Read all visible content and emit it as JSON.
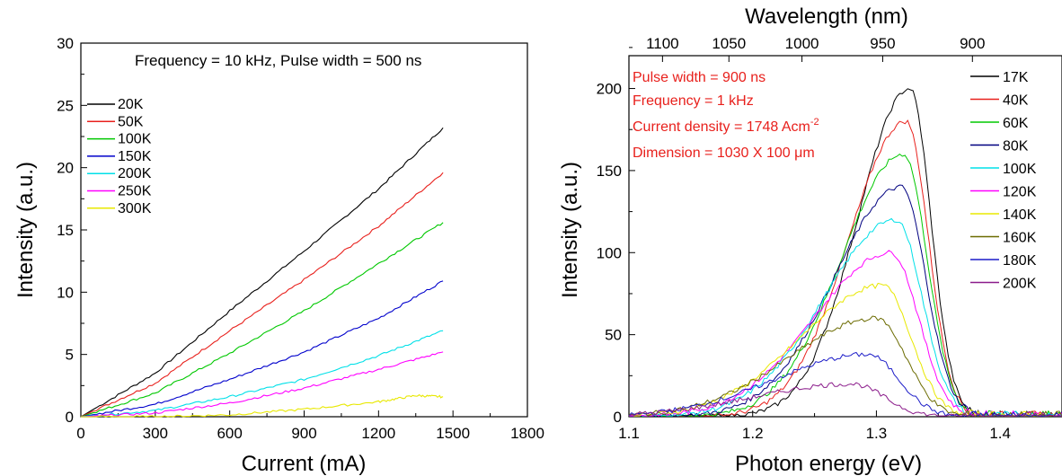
{
  "chart_data": [
    {
      "type": "line",
      "xlabel": "Current (mA)",
      "ylabel": "Intensity (a.u.)",
      "xlim": [
        0,
        1800
      ],
      "ylim": [
        0,
        30
      ],
      "xticks": [
        0,
        300,
        600,
        900,
        1200,
        1500,
        1800
      ],
      "yticks": [
        0,
        5,
        10,
        15,
        20,
        25,
        30
      ],
      "annotation": "Frequency = 10 kHz, Pulse width = 500 ns",
      "legend_position": "top-left",
      "grid": false,
      "series": [
        {
          "name": "20K",
          "color": "#000000",
          "x": [
            0,
            300,
            600,
            900,
            1200,
            1460
          ],
          "y": [
            0,
            3.5,
            8.5,
            13.3,
            18.3,
            23.2
          ]
        },
        {
          "name": "50K",
          "color": "#e8201c",
          "x": [
            0,
            300,
            600,
            900,
            1200,
            1460
          ],
          "y": [
            0,
            2.7,
            6.9,
            11.0,
            15.3,
            19.6
          ]
        },
        {
          "name": "100K",
          "color": "#00c800",
          "x": [
            0,
            300,
            600,
            900,
            1200,
            1460
          ],
          "y": [
            0,
            1.9,
            5.1,
            8.5,
            12.3,
            15.6
          ]
        },
        {
          "name": "150K",
          "color": "#0000cc",
          "x": [
            0,
            300,
            600,
            900,
            1200,
            1460
          ],
          "y": [
            0,
            1.0,
            3.0,
            5.2,
            7.9,
            10.9
          ]
        },
        {
          "name": "200K",
          "color": "#00e0e8",
          "x": [
            0,
            300,
            600,
            900,
            1200,
            1460
          ],
          "y": [
            0,
            0.5,
            1.6,
            3.0,
            4.9,
            6.9
          ]
        },
        {
          "name": "250K",
          "color": "#ff00ff",
          "x": [
            0,
            300,
            600,
            900,
            1200,
            1460
          ],
          "y": [
            0,
            0.3,
            1.1,
            2.3,
            3.8,
            5.2
          ]
        },
        {
          "name": "300K",
          "color": "#e8e800",
          "x": [
            0,
            300,
            600,
            900,
            1200,
            1350,
            1460
          ],
          "y": [
            0,
            0,
            0.15,
            0.6,
            1.2,
            1.7,
            1.6
          ]
        }
      ]
    },
    {
      "type": "line",
      "xlabel": "Photon energy (eV)",
      "ylabel": "Intensity (a.u.)",
      "x2label": "Wavelength (nm)",
      "xlim": [
        1.1,
        1.45
      ],
      "ylim": [
        0,
        220
      ],
      "xticks": [
        1.1,
        1.2,
        1.3,
        1.4
      ],
      "yticks": [
        0,
        50,
        100,
        150,
        200
      ],
      "x2ticks": [
        1100,
        1050,
        1000,
        950,
        900
      ],
      "legend_position": "top-right",
      "grid": false,
      "annotations": [
        "Pulse width = 900 ns",
        "Frequency = 1 kHz",
        "Current density = 1748 Acm",
        "Dimension = 1030 X 100 μm"
      ],
      "annotation_superscript": "-2",
      "series": [
        {
          "name": "17K",
          "color": "#000000",
          "peak_x": 1.327,
          "peak_y": 200
        },
        {
          "name": "40K",
          "color": "#e8201c",
          "peak_x": 1.324,
          "peak_y": 180
        },
        {
          "name": "60K",
          "color": "#00c800",
          "peak_x": 1.322,
          "peak_y": 160
        },
        {
          "name": "80K",
          "color": "#000080",
          "peak_x": 1.32,
          "peak_y": 140
        },
        {
          "name": "100K",
          "color": "#00e0e8",
          "peak_x": 1.316,
          "peak_y": 120
        },
        {
          "name": "120K",
          "color": "#ff00ff",
          "peak_x": 1.312,
          "peak_y": 100
        },
        {
          "name": "140K",
          "color": "#e8e800",
          "peak_x": 1.305,
          "peak_y": 80
        },
        {
          "name": "160K",
          "color": "#6b6b00",
          "peak_x": 1.3,
          "peak_y": 60
        },
        {
          "name": "180K",
          "color": "#1c1cc8",
          "peak_x": 1.293,
          "peak_y": 38
        },
        {
          "name": "200K",
          "color": "#8b1c8b",
          "peak_x": 1.28,
          "peak_y": 20
        }
      ]
    }
  ]
}
